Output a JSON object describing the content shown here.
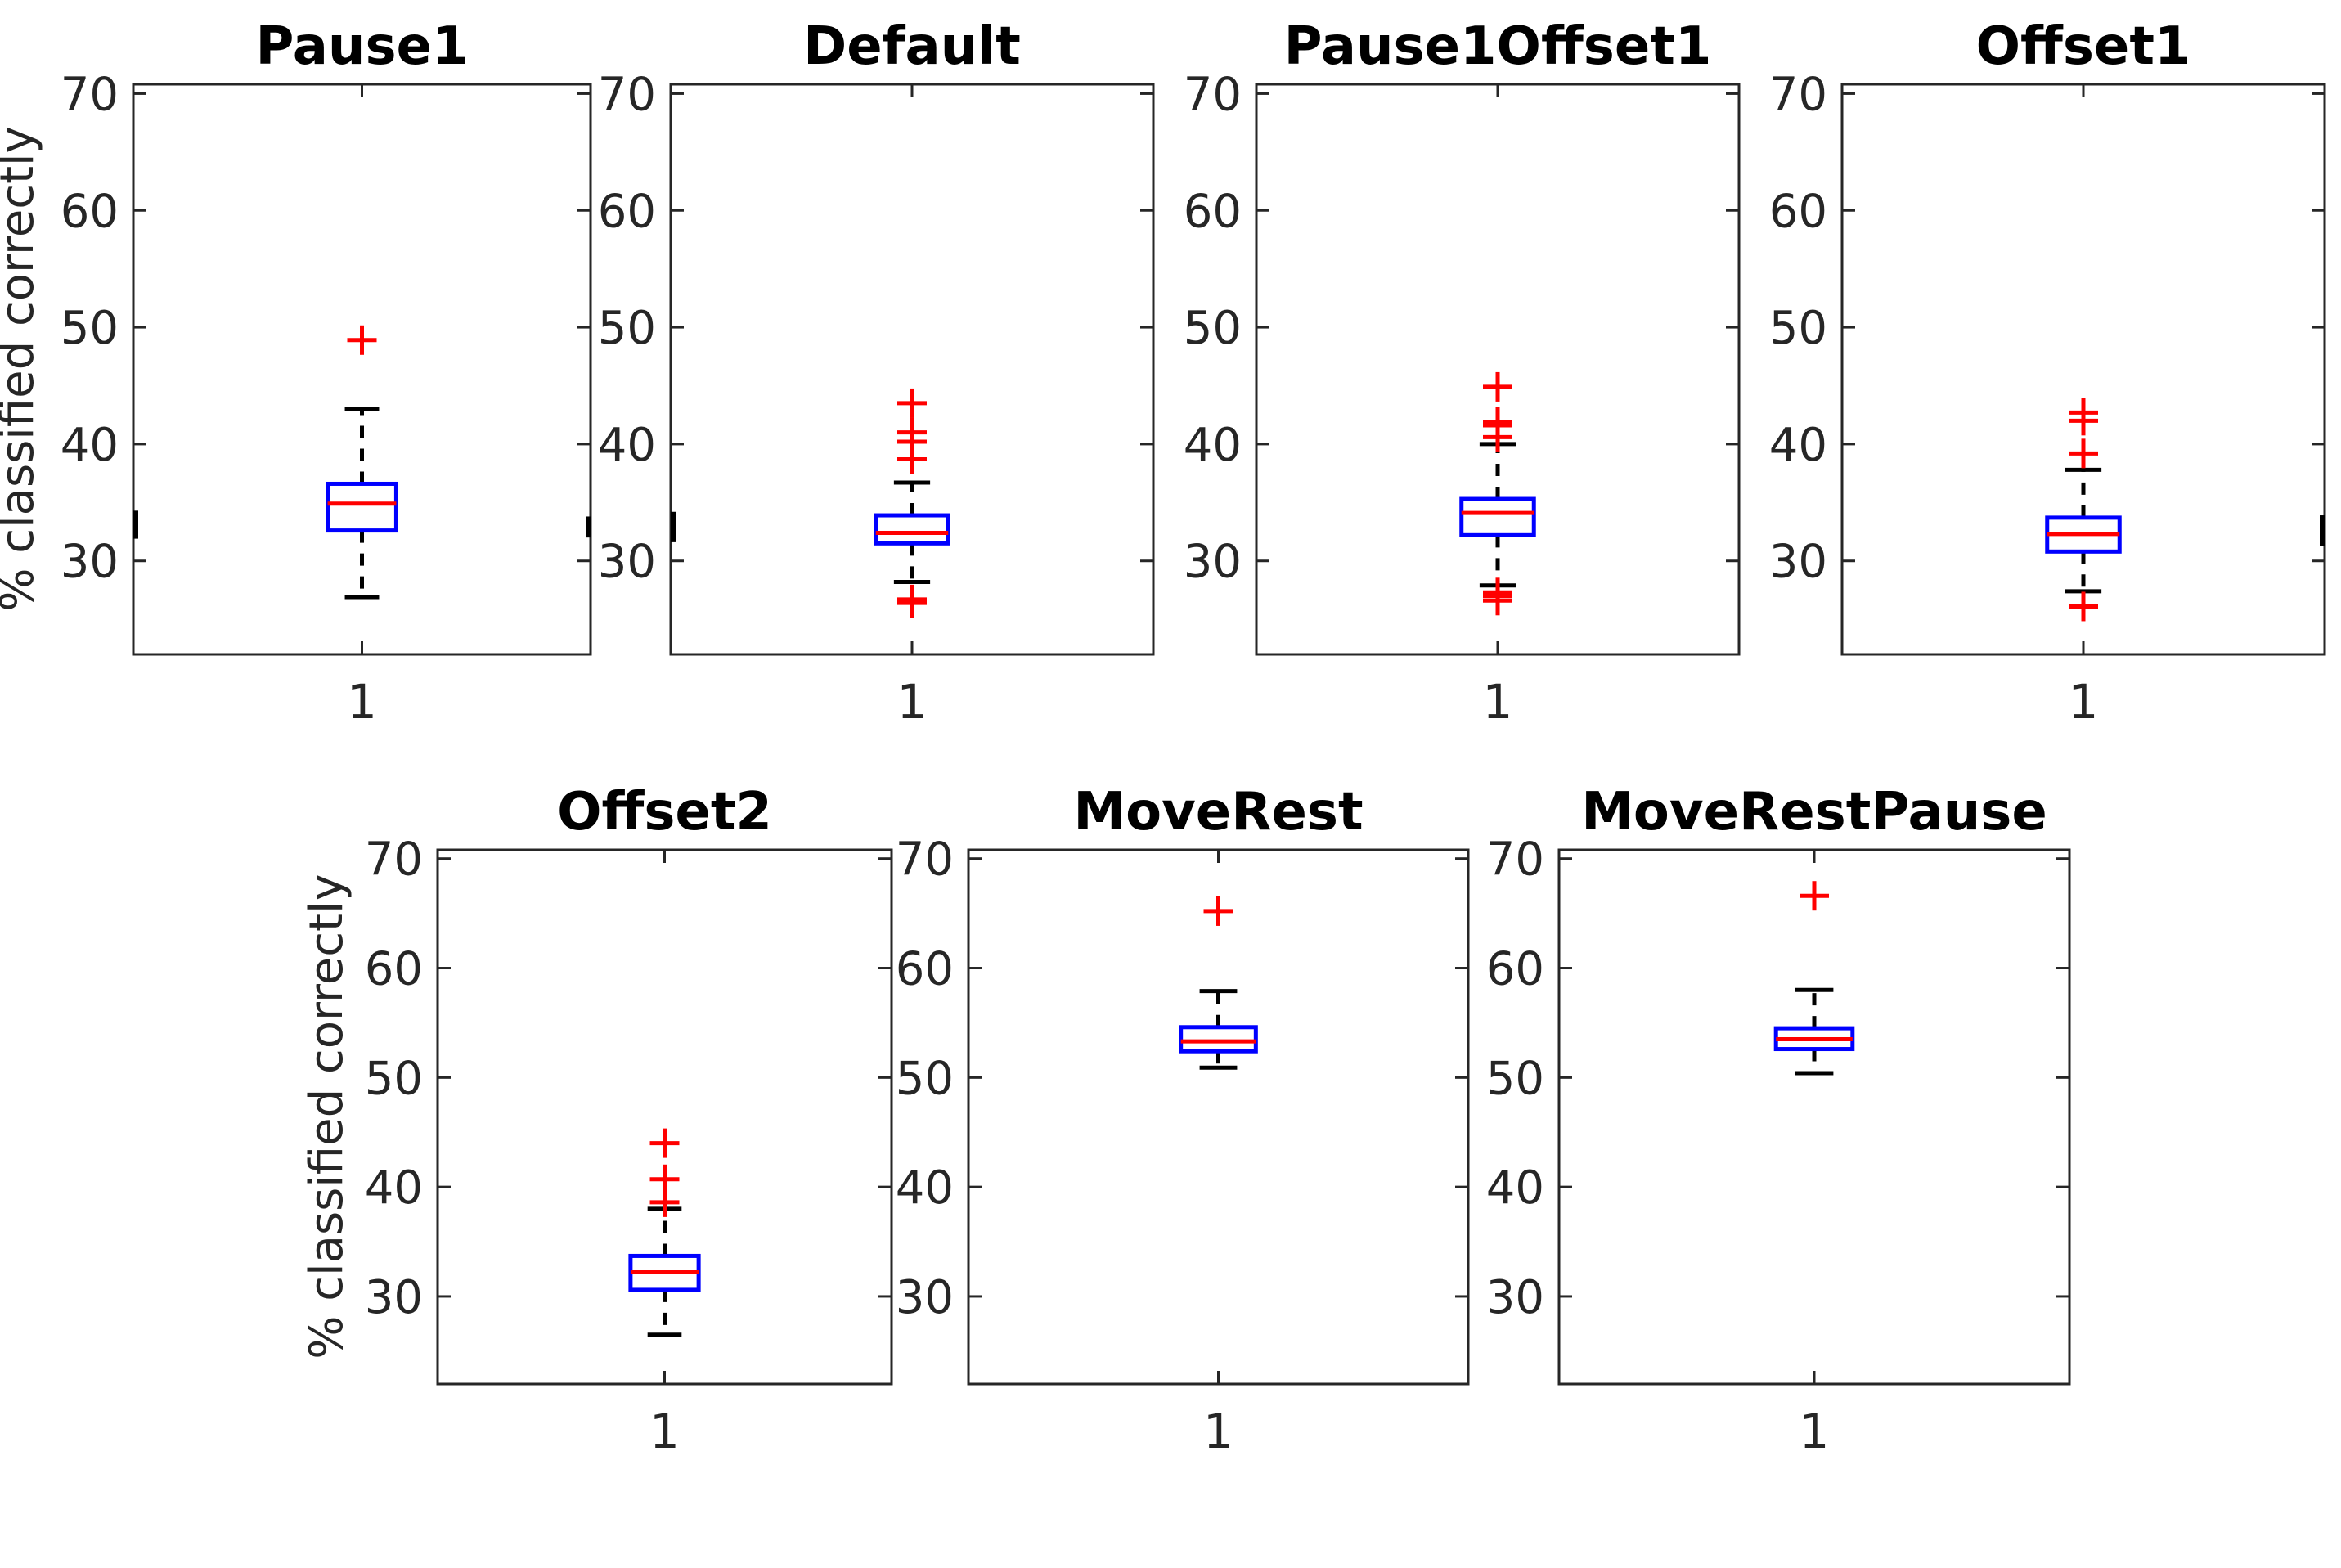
{
  "figure": {
    "background": "#ffffff",
    "colors": {
      "box": "#0000ff",
      "median": "#ff0000",
      "outlier": "#ff0000",
      "whisker": "#000000",
      "axis": "#262626",
      "tick_label": "#262626",
      "title": "#000000"
    }
  },
  "chart_data": {
    "type": "boxplot",
    "title": "",
    "ylabel": "% classified correctly",
    "xlabel": "",
    "x_tick_label": "1",
    "y_ticks": [
      30,
      40,
      50,
      60,
      70
    ],
    "ylim": [
      22,
      70.8
    ],
    "grid": false,
    "legend": "none",
    "plots": [
      {
        "title": "Pause1",
        "row": 1,
        "median": 34.9,
        "q1": 32.6,
        "q3": 36.6,
        "whisker_low": 26.9,
        "whisker_high": 43.0,
        "outliers_high": [
          48.9
        ],
        "outliers_low": []
      },
      {
        "title": "Default",
        "row": 1,
        "median": 32.4,
        "q1": 31.5,
        "q3": 33.9,
        "whisker_low": 28.2,
        "whisker_high": 36.7,
        "outliers_high": [
          43.5,
          41.0,
          40.2,
          38.7
        ],
        "outliers_low": [
          26.7,
          26.4
        ]
      },
      {
        "title": "Pause1Offset1",
        "row": 1,
        "median": 34.1,
        "q1": 32.2,
        "q3": 35.3,
        "whisker_low": 27.9,
        "whisker_high": 40.0,
        "outliers_high": [
          44.9,
          41.9,
          41.6,
          40.6
        ],
        "outliers_low": [
          27.3,
          27.0,
          26.6
        ]
      },
      {
        "title": "Offset1",
        "row": 1,
        "median": 32.3,
        "q1": 30.8,
        "q3": 33.7,
        "whisker_low": 27.4,
        "whisker_high": 37.8,
        "outliers_high": [
          42.7,
          42.0,
          39.2
        ],
        "outliers_low": [
          26.1
        ]
      },
      {
        "title": "Offset2",
        "row": 2,
        "median": 32.2,
        "q1": 30.6,
        "q3": 33.7,
        "whisker_low": 26.5,
        "whisker_high": 38.0,
        "outliers_high": [
          44.0,
          40.7,
          38.6
        ],
        "outliers_low": []
      },
      {
        "title": "MoveRest",
        "row": 2,
        "median": 53.3,
        "q1": 52.4,
        "q3": 54.6,
        "whisker_low": 50.9,
        "whisker_high": 57.9,
        "outliers_high": [
          65.2
        ],
        "outliers_low": []
      },
      {
        "title": "MoveRestPause",
        "row": 2,
        "median": 53.5,
        "q1": 52.6,
        "q3": 54.5,
        "whisker_low": 50.4,
        "whisker_high": 58.0,
        "outliers_high": [
          66.6
        ],
        "outliers_low": []
      }
    ]
  }
}
